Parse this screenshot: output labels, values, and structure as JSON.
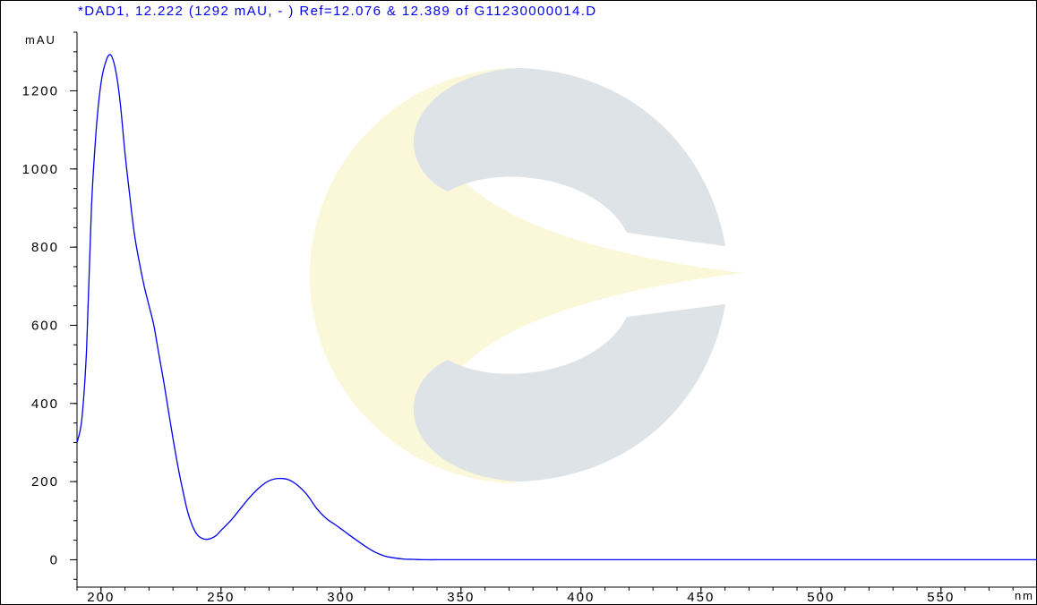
{
  "chart_data": {
    "type": "line",
    "title": "*DAD1, 12.222 (1292 mAU, - ) Ref=12.076 & 12.389 of G11230000014.D",
    "xlabel": "nm",
    "ylabel": "mAU",
    "xlim": [
      190,
      590
    ],
    "ylim": [
      -70,
      1350
    ],
    "x_ticks": [
      200,
      250,
      300,
      350,
      400,
      450,
      500,
      550
    ],
    "y_ticks": [
      0,
      200,
      400,
      600,
      800,
      1000,
      1200
    ],
    "x_minor_step": 10,
    "y_minor_step": 50,
    "grid": false,
    "colors": {
      "line": "#0000ee",
      "title": "#0000ee",
      "axis": "#000000"
    },
    "watermark": "logo",
    "series": [
      {
        "x": [
          190,
          192,
          194,
          196,
          198,
          200,
          202,
          204,
          206,
          208,
          210,
          212,
          214,
          216,
          218,
          220,
          222,
          224,
          226,
          228,
          230,
          232,
          234,
          236,
          238,
          240,
          242,
          244,
          246,
          248,
          250,
          254,
          258,
          262,
          266,
          270,
          274,
          278,
          282,
          286,
          290,
          294,
          298,
          302,
          306,
          310,
          314,
          318,
          322,
          326,
          330,
          335,
          340,
          350,
          360,
          380,
          400,
          420,
          450,
          500,
          550,
          590
        ],
        "y": [
          300,
          360,
          540,
          900,
          1100,
          1220,
          1275,
          1292,
          1255,
          1170,
          1040,
          930,
          830,
          760,
          700,
          650,
          600,
          530,
          460,
          385,
          310,
          240,
          180,
          125,
          88,
          65,
          55,
          52,
          55,
          62,
          75,
          100,
          130,
          160,
          185,
          202,
          208,
          205,
          190,
          165,
          130,
          105,
          88,
          70,
          52,
          35,
          20,
          10,
          5,
          2,
          1,
          0,
          0,
          0,
          0,
          0,
          0,
          0,
          0,
          0,
          0,
          0
        ]
      }
    ]
  }
}
